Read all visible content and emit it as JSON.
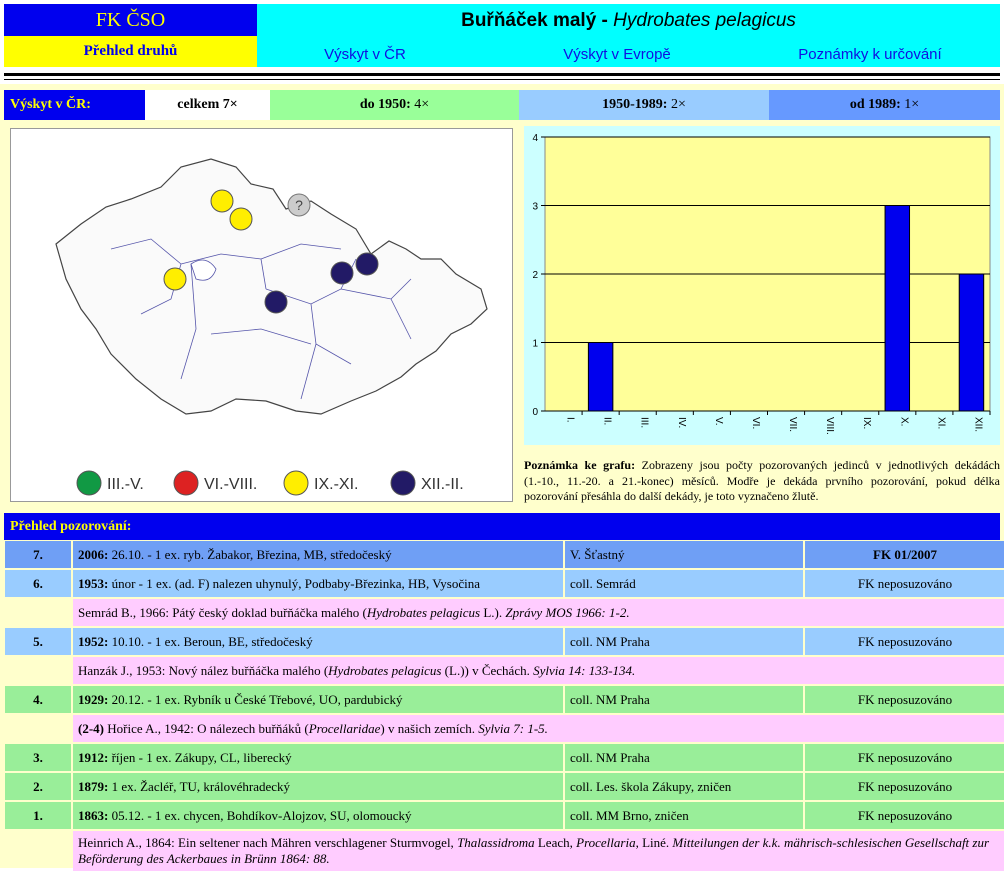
{
  "header": {
    "site": "FK ČSO",
    "species_list": "Přehled druhů",
    "title": "Buřňáček malý - ",
    "title_latin": "Hydrobates pelagicus",
    "nav": [
      "Výskyt v ČR",
      "Výskyt v Evropě",
      "Poznámky k určování"
    ]
  },
  "summary": {
    "label": "Výskyt v ČR:",
    "items": [
      {
        "label": "celkem",
        "value": "7×"
      },
      {
        "label": "do 1950:",
        "value": "4×"
      },
      {
        "label": "1950-1989:",
        "value": "2×"
      },
      {
        "label": "od 1989:",
        "value": "1×"
      }
    ]
  },
  "map": {
    "unknown_marker": "?",
    "legend": [
      {
        "label": "III.-V.",
        "color": "#119944"
      },
      {
        "label": "VI.-VIII.",
        "color": "#dd2222"
      },
      {
        "label": "IX.-XI.",
        "color": "#ffee00"
      },
      {
        "label": "XII.-II.",
        "color": "#221a66"
      }
    ]
  },
  "chart_data": {
    "type": "bar",
    "categories": [
      "I.",
      "II.",
      "III.",
      "IV.",
      "V.",
      "VI.",
      "VII.",
      "VIII.",
      "IX.",
      "X.",
      "XI.",
      "XII."
    ],
    "values": [
      0,
      1,
      0,
      0,
      0,
      0,
      0,
      0,
      0,
      3,
      0,
      2
    ],
    "color": "#0000ee",
    "ylim": [
      0,
      4
    ],
    "yticks": [
      0,
      1,
      2,
      3,
      4
    ],
    "grid": true
  },
  "chart_note": {
    "label": "Poznámka ke grafu:",
    "text": "Zobrazeny jsou počty pozorovaných jedinců v jednotlivých dekádách (1.-10., 11.-20. a 21.-konec) měsíců. Modře je dekáda prvního pozorování, pokud délka pozorování přesáhla do další dekády, je toto vyznačeno žlutě."
  },
  "table": {
    "title": "Přehled pozorování:",
    "rows": [
      {
        "number": "7.",
        "year": "2006:",
        "text": "26.10. - 1 ex. ryb. Žabakor, Březina, MB, středočeský",
        "observer": "V. Šťastný",
        "status": "FK 01/2007",
        "color": "#6f9ff5"
      },
      {
        "number": "6.",
        "year": "1953:",
        "text": "únor - 1 ex. (ad. F) nalezen uhynulý, Podbaby-Březinka, HB, Vysočina",
        "observer": "coll. Semrád",
        "status": "FK neposuzováno",
        "color": "#99ccff"
      },
      {
        "ref": [
          {
            "text": "Semrád B., 1966: Pátý český doklad buřňáčka malého ("
          },
          {
            "text": "Hydrobates pelagicus",
            "style": "italic"
          },
          {
            "text": " L.). "
          },
          {
            "text": "Zprávy MOS 1966: 1-2.",
            "style": "italic"
          }
        ]
      },
      {
        "number": "5.",
        "year": "1952:",
        "text": "10.10. - 1 ex. Beroun, BE, středočeský",
        "observer": "coll. NM Praha",
        "status": "FK neposuzováno",
        "color": "#99ccff"
      },
      {
        "ref": [
          {
            "text": "Hanzák J., 1953: Nový nález buřňáčka malého ("
          },
          {
            "text": "Hydrobates pelagicus",
            "style": "italic"
          },
          {
            "text": " (L.)) v Čechách. "
          },
          {
            "text": "Sylvia 14: 133-134.",
            "style": "italic"
          }
        ]
      },
      {
        "number": "4.",
        "year": "1929:",
        "text": "20.12. - 1 ex. Rybník u České Třebové, UO, pardubický",
        "observer": "coll. NM Praha",
        "status": "FK neposuzováno",
        "color": "#99ee99"
      },
      {
        "ref": [
          {
            "text": "(2-4)",
            "style": "bold"
          },
          {
            "text": " Hořice A., 1942: O nálezech buřňáků ("
          },
          {
            "text": "Procellaridae",
            "style": "italic"
          },
          {
            "text": ") v našich zemích. "
          },
          {
            "text": "Sylvia 7: 1-5.",
            "style": "italic"
          }
        ]
      },
      {
        "number": "3.",
        "year": "1912:",
        "text": "říjen - 1 ex. Zákupy, CL, liberecký",
        "observer": "coll. NM Praha",
        "status": "FK neposuzováno",
        "color": "#99ee99"
      },
      {
        "number": "2.",
        "year": "1879:",
        "text": "1 ex. Žacléř, TU, královéhradecký",
        "observer": "coll. Les. škola Zákupy, zničen",
        "status": "FK neposuzováno",
        "color": "#99ee99"
      },
      {
        "number": "1.",
        "year": "1863:",
        "text": "05.12. - 1 ex. chycen, Bohdíkov-Alojzov, SU, olomoucký",
        "observer": "coll. MM Brno, zničen",
        "status": "FK neposuzováno",
        "color": "#99ee99"
      },
      {
        "ref": [
          {
            "text": "Heinrich A., 1864: Ein seltener nach Mähren verschlagener Sturmvogel, "
          },
          {
            "text": "Thalassidroma",
            "style": "italic"
          },
          {
            "text": " Leach, "
          },
          {
            "text": "Procellaria",
            "style": "italic"
          },
          {
            "text": ", Liné. "
          },
          {
            "text": "Mitteilungen der k.k. mährisch-schlesischen Gesellschaft zur Beförderung des Ackerbaues in Brünn 1864: 88.",
            "style": "italic"
          }
        ]
      }
    ]
  }
}
